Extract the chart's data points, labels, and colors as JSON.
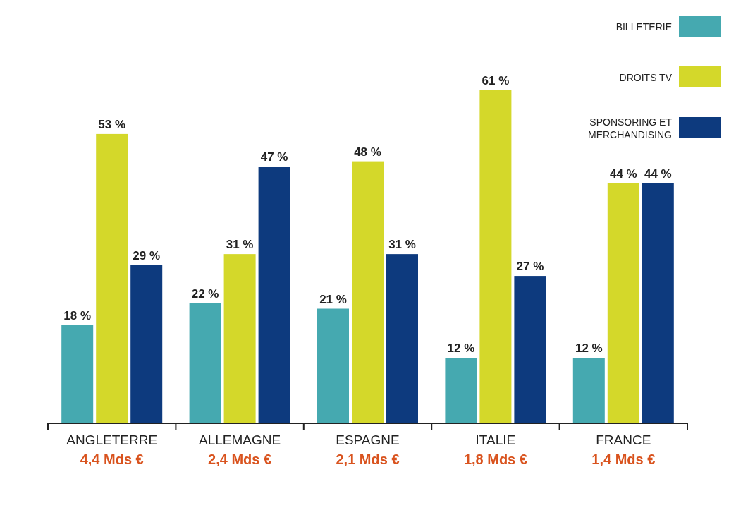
{
  "chart_data": {
    "type": "bar",
    "categories": [
      "ANGLETERRE",
      "ALLEMAGNE",
      "ESPAGNE",
      "ITALIE",
      "FRANCE"
    ],
    "series": [
      {
        "name": "BILLETERIE",
        "color": "#45a9b0",
        "values": [
          18,
          22,
          21,
          12,
          12
        ],
        "value_labels": [
          "18 %",
          "22 %",
          "21 %",
          "12 %",
          "12 %"
        ]
      },
      {
        "name": "DROITS TV",
        "color": "#d4d82a",
        "values": [
          53,
          31,
          48,
          61,
          44
        ],
        "value_labels": [
          "53 %",
          "31 %",
          "48 %",
          "61 %",
          "44 %"
        ]
      },
      {
        "name": "SPONSORING ET MERCHANDISING",
        "color": "#0d3a7e",
        "values": [
          29,
          47,
          31,
          27,
          44
        ],
        "value_labels": [
          "29 %",
          "47 %",
          "31 %",
          "27 %",
          "44 %"
        ]
      }
    ],
    "legend": "top right",
    "annotations": [
      "4,4 Mds €",
      "2,4 Mds €",
      "2,1 Mds €",
      "1,8 Mds €",
      "1,4 Mds €"
    ]
  }
}
